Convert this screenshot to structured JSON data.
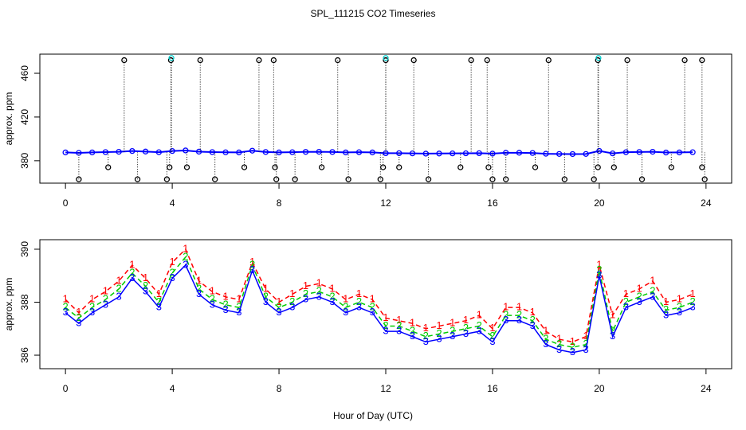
{
  "chart_data": [
    {
      "type": "scatter",
      "title": "SPL_111215  CO2 Timeseries",
      "ylabel": "approx. ppm",
      "xlim": [
        -0.96,
        24.96
      ],
      "xticks": [
        0,
        4,
        8,
        12,
        16,
        20,
        24
      ],
      "ylim": [
        359.5,
        477.5
      ],
      "yticks": [
        380,
        420,
        460
      ],
      "series": [
        {
          "color": "#0000ff",
          "x": [
            0,
            0.5,
            1,
            1.5,
            2,
            2.5,
            3,
            3.5,
            4,
            4.5,
            5,
            5.5,
            6,
            6.5,
            7,
            7.5,
            8,
            8.5,
            9,
            9.5,
            10,
            10.5,
            11,
            11.5,
            12,
            12.5,
            13,
            13.5,
            14,
            14.5,
            15,
            15.5,
            16,
            16.5,
            17,
            17.5,
            18,
            18.5,
            19,
            19.5,
            20,
            20.5,
            21,
            21.5,
            22,
            22.5,
            23,
            23.5
          ],
          "values": [
            387.6,
            387.2,
            387.6,
            387.9,
            388.2,
            388.9,
            388.4,
            387.8,
            388.9,
            389.4,
            388.3,
            387.9,
            387.7,
            387.6,
            389.2,
            388.0,
            387.6,
            387.8,
            388.1,
            388.2,
            388.0,
            387.6,
            387.8,
            387.6,
            386.9,
            386.9,
            386.7,
            386.5,
            386.6,
            386.7,
            386.8,
            386.9,
            386.5,
            387.3,
            387.3,
            387.1,
            386.4,
            386.2,
            386.1,
            386.2,
            389.0,
            386.7,
            387.8,
            388.0,
            388.2,
            387.5,
            387.6,
            387.8
          ]
        },
        {
          "color": "#000000",
          "x": [
            2.2,
            3.95,
            5.05,
            7.25,
            7.8,
            10.2,
            12.0,
            13.05,
            15.2,
            15.8,
            18.1,
            19.95,
            21.05,
            23.2,
            23.85
          ],
          "values": [
            472,
            472,
            472,
            472,
            472,
            472,
            472,
            472,
            472,
            472,
            472,
            472,
            472,
            472,
            472
          ]
        },
        {
          "color": "#00cccc",
          "x": [
            3.97,
            12.0,
            19.97
          ],
          "values": [
            474,
            474,
            474
          ]
        },
        {
          "color": "#000000",
          "x": [
            1.6,
            3.9,
            4.55,
            6.7,
            7.85,
            9.6,
            11.9,
            12.5,
            14.8,
            15.85,
            17.6,
            19.95,
            20.55,
            22.7,
            23.85
          ],
          "values": [
            374,
            374,
            374,
            374,
            374,
            374,
            374,
            374,
            374,
            374,
            374,
            374,
            374,
            374,
            374
          ]
        },
        {
          "color": "#000000",
          "x": [
            0.5,
            2.7,
            3.8,
            5.6,
            7.9,
            8.6,
            10.6,
            11.8,
            13.6,
            16.0,
            16.5,
            18.7,
            19.8,
            21.6,
            23.95
          ],
          "values": [
            363,
            363,
            363,
            363,
            363,
            363,
            363,
            363,
            363,
            363,
            363,
            363,
            363,
            363,
            363
          ]
        }
      ]
    },
    {
      "type": "line",
      "ylabel": "approx. ppm",
      "xlabel": "Hour of Day (UTC)",
      "xlim": [
        -0.96,
        24.96
      ],
      "xticks": [
        0,
        4,
        8,
        12,
        16,
        20,
        24
      ],
      "ylim": [
        385.49,
        390.36
      ],
      "yticks": [
        386,
        388,
        390
      ],
      "x": [
        0,
        0.5,
        1,
        1.5,
        2,
        2.5,
        3,
        3.5,
        4,
        4.5,
        5,
        5.5,
        6,
        6.5,
        7,
        7.5,
        8,
        8.5,
        9,
        9.5,
        10,
        10.5,
        11,
        11.5,
        12,
        12.5,
        13,
        13.5,
        14,
        14.5,
        15,
        15.5,
        16,
        16.5,
        17,
        17.5,
        18,
        18.5,
        19,
        19.5,
        20,
        20.5,
        21,
        21.5,
        22,
        22.5,
        23,
        23.5
      ],
      "series": [
        {
          "marker": "1",
          "color": "#ff0000",
          "dashed": true,
          "values": [
            388.1,
            387.6,
            388.1,
            388.4,
            388.8,
            389.4,
            388.9,
            388.3,
            389.5,
            390.0,
            388.8,
            388.4,
            388.2,
            388.1,
            389.5,
            388.5,
            388.0,
            388.3,
            388.6,
            388.7,
            388.5,
            388.1,
            388.3,
            388.1,
            387.4,
            387.3,
            387.2,
            387.0,
            387.1,
            387.2,
            387.3,
            387.5,
            387.0,
            387.8,
            387.8,
            387.6,
            386.9,
            386.6,
            386.5,
            386.7,
            389.4,
            387.5,
            388.3,
            388.5,
            388.8,
            388.0,
            388.1,
            388.3
          ]
        },
        {
          "marker": "2",
          "color": "#00cc00",
          "dashed": true,
          "values": [
            387.8,
            387.4,
            387.8,
            388.1,
            388.5,
            389.1,
            388.6,
            388.0,
            389.1,
            389.7,
            388.5,
            388.1,
            387.9,
            387.8,
            389.4,
            388.2,
            387.8,
            388.0,
            388.3,
            388.4,
            388.2,
            387.8,
            388.0,
            387.8,
            387.1,
            387.1,
            386.9,
            386.7,
            386.8,
            386.9,
            387.0,
            387.1,
            386.7,
            387.5,
            387.5,
            387.3,
            386.6,
            386.4,
            386.3,
            386.4,
            389.2,
            386.9,
            388.0,
            388.2,
            388.4,
            387.7,
            387.8,
            388.0
          ]
        },
        {
          "marker": "3",
          "color": "#0000ff",
          "dashed": false,
          "values": [
            387.6,
            387.2,
            387.6,
            387.9,
            388.2,
            388.9,
            388.4,
            387.8,
            388.9,
            389.4,
            388.3,
            387.9,
            387.7,
            387.6,
            389.2,
            388.0,
            387.6,
            387.8,
            388.1,
            388.2,
            388.0,
            387.6,
            387.8,
            387.6,
            386.9,
            386.9,
            386.7,
            386.5,
            386.6,
            386.7,
            386.8,
            386.9,
            386.5,
            387.3,
            387.3,
            387.1,
            386.4,
            386.2,
            386.1,
            386.2,
            389.0,
            386.7,
            387.8,
            388.0,
            388.2,
            387.5,
            387.6,
            387.8
          ]
        }
      ]
    }
  ]
}
